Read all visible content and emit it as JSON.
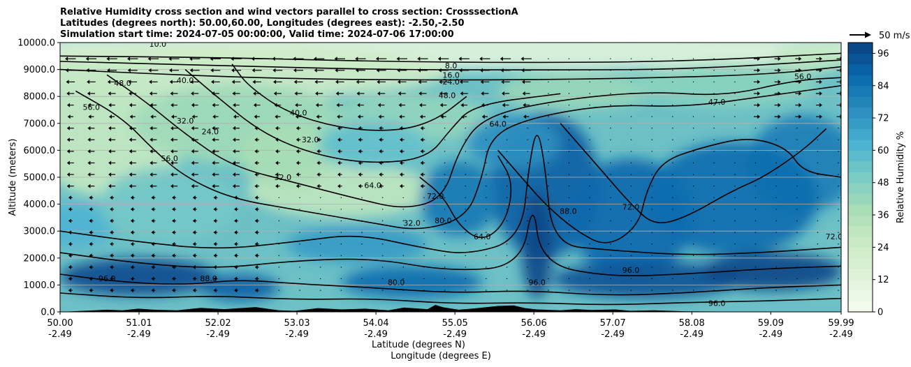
{
  "chart_data": {
    "type": "heatmap",
    "title_lines": [
      "Relative Humidity cross section and wind vectors parallel to cross section: CrosssectionA",
      "Latitudes (degrees north): 50.00,60.00, Longitudes (degrees east): -2.50,-2.50",
      "Simulation start time: 2024-07-05 00:00:00, Valid time: 2024-07-06 17:00:00"
    ],
    "xlabel_lines": [
      "Latitude (degrees N)",
      "Longitude (degrees E)"
    ],
    "ylabel": "Altitude (meters)",
    "x_ticks": [
      {
        "lat": "50.00",
        "lon": "-2.49",
        "value": 50.0
      },
      {
        "lat": "51.01",
        "lon": "-2.49",
        "value": 51.01
      },
      {
        "lat": "52.02",
        "lon": "-2.49",
        "value": 52.02
      },
      {
        "lat": "53.03",
        "lon": "-2.49",
        "value": 53.03
      },
      {
        "lat": "54.04",
        "lon": "-2.49",
        "value": 54.04
      },
      {
        "lat": "55.05",
        "lon": "-2.49",
        "value": 55.05
      },
      {
        "lat": "56.06",
        "lon": "-2.49",
        "value": 56.06
      },
      {
        "lat": "57.07",
        "lon": "-2.49",
        "value": 57.07
      },
      {
        "lat": "58.08",
        "lon": "-2.49",
        "value": 58.08
      },
      {
        "lat": "59.09",
        "lon": "-2.49",
        "value": 59.09
      },
      {
        "lat": "59.99",
        "lon": "-2.49",
        "value": 59.99
      }
    ],
    "xlim": [
      50.0,
      59.99
    ],
    "y_ticks": [
      "0.0",
      "1000.0",
      "2000.0",
      "3000.0",
      "4000.0",
      "5000.0",
      "6000.0",
      "7000.0",
      "8000.0",
      "9000.0",
      "10000.0"
    ],
    "ylim": [
      0,
      10000
    ],
    "grid": "horizontal",
    "colorbar": {
      "label": "Relative Humidity %",
      "ticks": [
        "0",
        "12",
        "24",
        "36",
        "48",
        "60",
        "72",
        "84",
        "96"
      ],
      "range": [
        0,
        100
      ],
      "levels": 25,
      "colormap": "GnBu"
    },
    "quiver_key": {
      "label": "50 m/s"
    },
    "contour_labels": [
      {
        "text": "8.0",
        "lat": 55.0,
        "alt": 9150
      },
      {
        "text": "16.0",
        "lat": 55.0,
        "alt": 8800
      },
      {
        "text": "24.0",
        "lat": 55.0,
        "alt": 8550
      },
      {
        "text": "48.0",
        "lat": 54.95,
        "alt": 8050
      },
      {
        "text": "56.0",
        "lat": 59.5,
        "alt": 8750
      },
      {
        "text": "47.0",
        "lat": 58.4,
        "alt": 7800
      },
      {
        "text": "64.0",
        "lat": 55.6,
        "alt": 6980
      },
      {
        "text": "40.0",
        "lat": 53.05,
        "alt": 7400
      },
      {
        "text": "32.0",
        "lat": 51.6,
        "alt": 7100
      },
      {
        "text": "32.0",
        "lat": 53.2,
        "alt": 6400
      },
      {
        "text": "32.0",
        "lat": 52.85,
        "alt": 5000
      },
      {
        "text": "64.0",
        "lat": 54.0,
        "alt": 4700
      },
      {
        "text": "32.0",
        "lat": 54.5,
        "alt": 3300
      },
      {
        "text": "72.0",
        "lat": 54.8,
        "alt": 4300
      },
      {
        "text": "80.0",
        "lat": 54.9,
        "alt": 3400
      },
      {
        "text": "64.0",
        "lat": 55.4,
        "alt": 2800
      },
      {
        "text": "88.0",
        "lat": 56.5,
        "alt": 3750
      },
      {
        "text": "72.0",
        "lat": 57.3,
        "alt": 3900
      },
      {
        "text": "72.0",
        "lat": 59.9,
        "alt": 2800
      },
      {
        "text": "96.0",
        "lat": 57.3,
        "alt": 1550
      },
      {
        "text": "96.0",
        "lat": 50.6,
        "alt": 1250
      },
      {
        "text": "96.0",
        "lat": 56.1,
        "alt": 1100
      },
      {
        "text": "96.0",
        "lat": 58.4,
        "alt": 320
      },
      {
        "text": "88.0",
        "lat": 51.9,
        "alt": 1250
      },
      {
        "text": "80.0",
        "lat": 54.3,
        "alt": 1100
      },
      {
        "text": "56.0",
        "lat": 50.4,
        "alt": 7600
      },
      {
        "text": "56.0",
        "lat": 51.4,
        "alt": 5700
      },
      {
        "text": "40.0",
        "lat": 51.6,
        "alt": 8600
      },
      {
        "text": "48.0",
        "lat": 50.8,
        "alt": 8500
      },
      {
        "text": "24.0",
        "lat": 51.92,
        "alt": 6700
      },
      {
        "text": "10.0",
        "lat": 51.25,
        "alt": 9950
      }
    ]
  }
}
